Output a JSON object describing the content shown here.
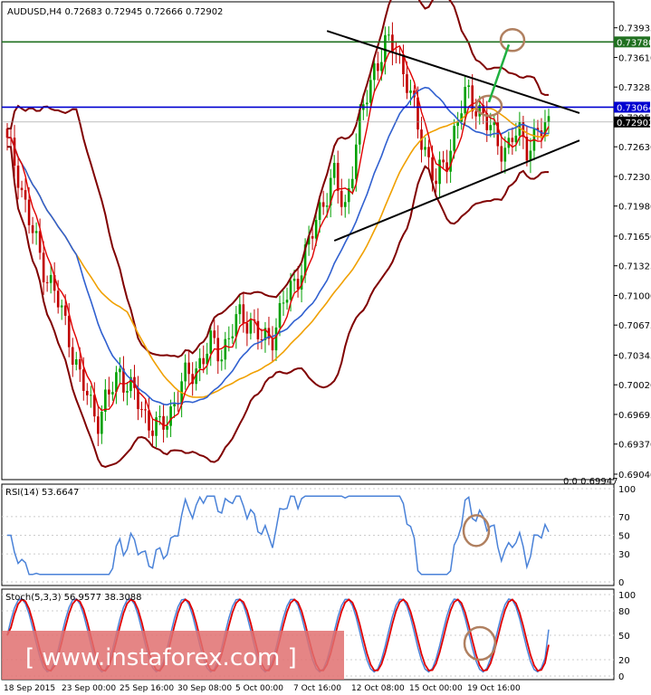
{
  "header": {
    "symbol_line": "AUDUSD,H4  0.72683 0.72945 0.72666 0.72902",
    "rsi_line": "RSI(14) 53.6647",
    "stoch_line": "Stoch(5,3,3) 56.9577 38.3088",
    "watermark": "[ www.instaforex.com ]",
    "bottom_right_label": "0.0 0.69947"
  },
  "colors": {
    "bullish_candle": "#00a000",
    "bearish_candle": "#c00000",
    "bb_band": "#800000",
    "ema_red": "#e00000",
    "ema_blue": "#3060d0",
    "ema_orange": "#f0a000",
    "rsi_line": "#4a82d8",
    "stoch_main": "#4a82d8",
    "stoch_signal": "#e00000",
    "resistance": "#0000d0",
    "target": "#207020",
    "price_label_bg": "#000000",
    "watermark_bg": "#e07070",
    "circle": "#b08060",
    "arrow": "#20b040"
  },
  "chart_data": [
    {
      "type": "candlestick",
      "symbol": "AUDUSD",
      "timeframe": "H4",
      "ylim": [
        0.69,
        0.742
      ],
      "y_ticks": [
        "0.73935",
        "0.73610",
        "0.73285",
        "0.72955",
        "0.72630",
        "0.72305",
        "0.71980",
        "0.71650",
        "0.71325",
        "0.71000",
        "0.70675",
        "0.70345",
        "0.70020",
        "0.69695",
        "0.69370",
        "0.69040"
      ],
      "x_ticks": [
        "18 Sep 2015",
        "23 Sep 00:00",
        "25 Sep 16:00",
        "30 Sep 08:00",
        "5 Oct 00:00",
        "7 Oct 16:00",
        "12 Oct 08:00",
        "15 Oct 00:00",
        "19 Oct 16:00"
      ],
      "horizontal_levels": [
        {
          "label": "0.73780",
          "value": 0.7378,
          "color": "#207020"
        },
        {
          "label": "0.73064",
          "value": 0.73064,
          "color": "#0000d0"
        }
      ],
      "current_price": {
        "label": "0.72902",
        "value": 0.72902
      },
      "close_path": [
        0.7265,
        0.724,
        0.7185,
        0.715,
        0.712,
        0.709,
        0.706,
        0.701,
        0.6985,
        0.6965,
        0.699,
        0.702,
        0.6995,
        0.698,
        0.696,
        0.695,
        0.6975,
        0.7,
        0.7015,
        0.703,
        0.7045,
        0.704,
        0.706,
        0.708,
        0.707,
        0.7045,
        0.706,
        0.709,
        0.711,
        0.714,
        0.717,
        0.721,
        0.723,
        0.719,
        0.726,
        0.731,
        0.7355,
        0.737,
        0.7375,
        0.734,
        0.729,
        0.726,
        0.722,
        0.725,
        0.729,
        0.732,
        0.731,
        0.7285,
        0.727,
        0.726,
        0.728,
        0.7265,
        0.7275,
        0.729
      ]
    },
    {
      "type": "line",
      "name": "RSI(14)",
      "ylim": [
        0,
        100
      ],
      "y_ticks": [
        "100",
        "70",
        "50",
        "30",
        "0"
      ],
      "last_value": 53.6647
    },
    {
      "type": "line",
      "name": "Stoch(5,3,3)",
      "ylim": [
        0,
        100
      ],
      "y_ticks": [
        "100",
        "80",
        "50",
        "20",
        "0"
      ],
      "main_last": 56.9577,
      "signal_last": 38.3088
    }
  ]
}
